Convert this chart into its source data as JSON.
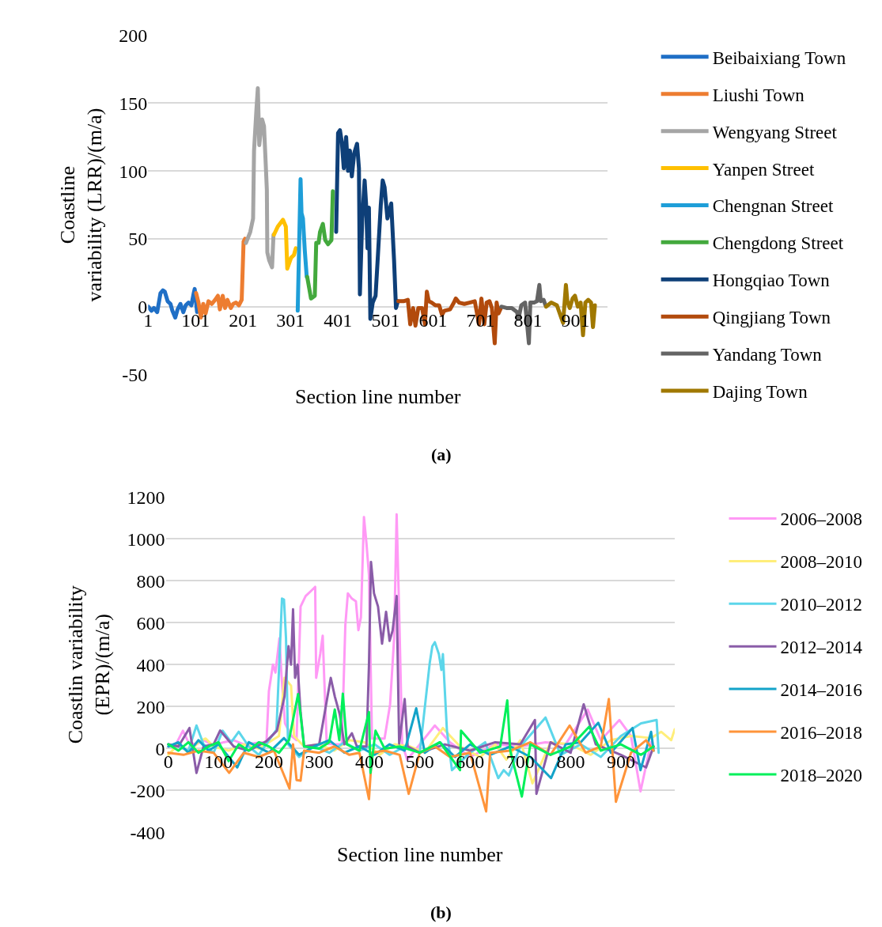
{
  "chart_data": [
    {
      "type": "line",
      "xlabel": "Section line number",
      "ylabel": "Coastline\nvariability (LRR)/(m/a)",
      "annotations": [
        "(a)"
      ],
      "xlim": [
        1,
        969
      ],
      "xticks": [
        1,
        101,
        201,
        301,
        401,
        501,
        601,
        701,
        801,
        901
      ],
      "ylim": [
        -50,
        200
      ],
      "yticks": [
        -50,
        0,
        50,
        100,
        150,
        200
      ],
      "grid": "y",
      "legend": "right",
      "series": [
        {
          "name": "Beibaixiang Town",
          "color": "#1f6fc6",
          "x": [
            1,
            8,
            13,
            20,
            27,
            32,
            36,
            42,
            48,
            52,
            58,
            63,
            69,
            75,
            80,
            86,
            92,
            97,
            99,
            104
          ],
          "values": [
            0,
            -3,
            -1,
            -4,
            10,
            12,
            11,
            4,
            2,
            -3,
            -8,
            -2,
            2,
            -4,
            1,
            3,
            1,
            10,
            13,
            -4
          ]
        },
        {
          "name": "Liushi Town",
          "color": "#ed7d31",
          "x": [
            102,
            107,
            112,
            117,
            122,
            128,
            135,
            142,
            148,
            152,
            158,
            163,
            168,
            175,
            180,
            186,
            192,
            198,
            202,
            205
          ],
          "values": [
            10,
            3,
            -8,
            2,
            -5,
            4,
            2,
            5,
            8,
            -2,
            8,
            -1,
            5,
            -1,
            2,
            3,
            1,
            5,
            48,
            50
          ]
        },
        {
          "name": "Wengyang Street",
          "color": "#a5a5a5",
          "x": [
            207,
            216,
            222,
            224,
            229,
            232,
            235,
            241,
            245,
            248,
            251,
            252,
            256,
            262,
            265
          ],
          "values": [
            47,
            55,
            65,
            115,
            145,
            161,
            119,
            138,
            133,
            110,
            86,
            40,
            34,
            29,
            53
          ]
        },
        {
          "name": "Yanpen Street",
          "color": "#ffc000",
          "x": [
            266,
            274,
            285,
            291,
            294,
            302,
            308,
            312
          ],
          "values": [
            53,
            59,
            64,
            59,
            28,
            36,
            38,
            43
          ]
        },
        {
          "name": "Chengnan Street",
          "color": "#1e9ed8",
          "x": [
            316,
            322,
            324,
            327,
            331,
            335
          ],
          "values": [
            -3,
            94,
            69,
            65,
            41,
            22
          ]
        },
        {
          "name": "Chengdong Street",
          "color": "#43a93d",
          "x": [
            336,
            340,
            344,
            352,
            355,
            360,
            363,
            369,
            374,
            380,
            387,
            390
          ],
          "values": [
            22,
            14,
            6,
            8,
            47,
            47,
            55,
            61,
            49,
            46,
            49,
            85
          ]
        },
        {
          "name": "Hongqiao Town",
          "color": "#0e3f78",
          "x": [
            397,
            401,
            405,
            409,
            413,
            418,
            422,
            426,
            430,
            435,
            441,
            445,
            447,
            452,
            457,
            460,
            463,
            466,
            469,
            474,
            480,
            485,
            491,
            495,
            499,
            505,
            513,
            519,
            523,
            527
          ],
          "values": [
            55,
            128,
            130,
            121,
            102,
            125,
            100,
            115,
            96,
            113,
            120,
            102,
            9,
            65,
            93,
            76,
            43,
            73,
            -9,
            3,
            8,
            38,
            75,
            93,
            88,
            65,
            76,
            34,
            -1,
            4
          ]
        },
        {
          "name": "Qingjiang Town",
          "color": "#b24a0c",
          "x": [
            528,
            539,
            548,
            553,
            559,
            564,
            570,
            578,
            584,
            588,
            592,
            598,
            606,
            614,
            620,
            625,
            637,
            645,
            649,
            656,
            667,
            678,
            689,
            698,
            703,
            709,
            714,
            720,
            725,
            731,
            735,
            739,
            744
          ],
          "values": [
            4,
            4,
            5,
            -13,
            -1,
            -14,
            -1,
            -1,
            -13,
            11,
            4,
            3,
            1,
            1,
            -6,
            -3,
            -2,
            3,
            6,
            3,
            2,
            3,
            4,
            -13,
            6,
            -13,
            3,
            4,
            -1,
            -27,
            3,
            -5,
            -1
          ]
        },
        {
          "name": "Yandang Town",
          "color": "#646464",
          "x": [
            745,
            756,
            767,
            778,
            781,
            787,
            795,
            803,
            806,
            814,
            820,
            825,
            828,
            834,
            838
          ],
          "values": [
            0,
            -1,
            -1,
            -4,
            -9,
            1,
            3,
            -27,
            3,
            3,
            4,
            16,
            4,
            5,
            1
          ]
        },
        {
          "name": "Dajing Town",
          "color": "#a07800",
          "x": [
            839,
            850,
            862,
            870,
            875,
            881,
            884,
            889,
            895,
            900,
            906,
            912,
            917,
            922,
            928,
            934,
            938,
            942
          ],
          "values": [
            0,
            3,
            1,
            -7,
            -12,
            16,
            4,
            -1,
            6,
            8,
            0,
            3,
            -21,
            3,
            5,
            3,
            -15,
            1
          ]
        }
      ]
    },
    {
      "type": "line",
      "xlabel": "Section line number",
      "ylabel": "Coastlin variability\n(EPR)/(m/a)",
      "annotations": [
        "(b)"
      ],
      "xlim": [
        -5,
        1007
      ],
      "xticks": [
        0,
        100,
        200,
        300,
        400,
        500,
        600,
        700,
        800,
        900
      ],
      "ylim": [
        -400,
        1200
      ],
      "yticks": [
        -400,
        -200,
        0,
        200,
        400,
        600,
        800,
        1000,
        1200
      ],
      "grid": "y",
      "legend": "right",
      "series": [
        {
          "name": "2006–2008",
          "color": "#ff99f5",
          "x": [
            0,
            15,
            29,
            40,
            55,
            70,
            90,
            110,
            130,
            150,
            170,
            185,
            195,
            200,
            208,
            213,
            221,
            225,
            232,
            245,
            255,
            263,
            273,
            284,
            292,
            294,
            302,
            307,
            310,
            315,
            330,
            345,
            352,
            357,
            365,
            373,
            378,
            383,
            389,
            394,
            399,
            405,
            430,
            441,
            449,
            454,
            459,
            465,
            475,
            500,
            530,
            560,
            600,
            650,
            700,
            750,
            790,
            834,
            860,
            897,
            920,
            939,
            960
          ],
          "values": [
            10,
            20,
            85,
            30,
            20,
            40,
            15,
            30,
            40,
            20,
            25,
            30,
            23,
            274,
            400,
            362,
            526,
            350,
            120,
            60,
            40,
            677,
            727,
            752,
            771,
            337,
            450,
            538,
            337,
            23,
            20,
            20,
            589,
            740,
            715,
            702,
            564,
            626,
            1104,
            979,
            828,
            48,
            48,
            211,
            526,
            1117,
            652,
            23,
            -53,
            20,
            110,
            30,
            -40,
            20,
            10,
            30,
            20,
            186,
            40,
            136,
            60,
            -204,
            30
          ]
        },
        {
          "name": "2008–2010",
          "color": "#ffee7a",
          "x": [
            0,
            20,
            40,
            60,
            74,
            90,
            120,
            150,
            180,
            200,
            220,
            231,
            244,
            250,
            270,
            300,
            330,
            360,
            390,
            420,
            450,
            480,
            510,
            546,
            580,
            620,
            650,
            672,
            700,
            724,
            760,
            800,
            840,
            880,
            920,
            960,
            980,
            1000,
            1007
          ],
          "values": [
            -30,
            20,
            -20,
            30,
            48,
            10,
            -10,
            20,
            0,
            30,
            60,
            337,
            300,
            60,
            10,
            20,
            -10,
            40,
            30,
            -30,
            20,
            10,
            -20,
            98,
            10,
            -40,
            20,
            -53,
            40,
            -166,
            30,
            20,
            -30,
            40,
            60,
            50,
            80,
            40,
            92
          ]
        },
        {
          "name": "2010–2012",
          "color": "#5cd6ea",
          "x": [
            0,
            20,
            40,
            56,
            70,
            90,
            108,
            125,
            140,
            160,
            180,
            200,
            215,
            226,
            230,
            234,
            238,
            260,
            290,
            320,
            350,
            380,
            410,
            440,
            470,
            500,
            520,
            525,
            530,
            538,
            543,
            546,
            554,
            564,
            600,
            630,
            656,
            667,
            677,
            700,
            750,
            780,
            820,
            860,
            900,
            940,
            971,
            975
          ],
          "values": [
            20,
            10,
            -10,
            110,
            20,
            -20,
            85,
            30,
            80,
            10,
            -30,
            40,
            90,
            715,
            710,
            526,
            20,
            -40,
            10,
            -20,
            30,
            -10,
            20,
            -30,
            10,
            -20,
            412,
            488,
            507,
            450,
            375,
            450,
            86,
            -103,
            -20,
            30,
            -141,
            -103,
            -128,
            10,
            148,
            -30,
            20,
            -40,
            60,
            120,
            136,
            -20
          ]
        },
        {
          "name": "2012–2014",
          "color": "#8a5ca8",
          "x": [
            0,
            20,
            42,
            56,
            70,
            90,
            103,
            130,
            160,
            195,
            216,
            231,
            239,
            244,
            248,
            252,
            257,
            263,
            270,
            300,
            323,
            331,
            341,
            350,
            365,
            375,
            394,
            399,
            403,
            409,
            417,
            425,
            433,
            440,
            446,
            454,
            459,
            470,
            476,
            500,
            550,
            600,
            650,
            700,
            729,
            732,
            760,
            800,
            826,
            850,
            900,
            950,
            965
          ],
          "values": [
            20,
            10,
            98,
            -116,
            10,
            20,
            86,
            10,
            -10,
            35,
            85,
            249,
            488,
            400,
            664,
            337,
            400,
            174,
            10,
            20,
            337,
            249,
            161,
            20,
            73,
            10,
            10,
            400,
            890,
            740,
            677,
            500,
            652,
            513,
            563,
            727,
            23,
            236,
            10,
            -20,
            20,
            -10,
            30,
            20,
            136,
            -216,
            30,
            -20,
            211,
            20,
            -30,
            -90,
            10
          ]
        },
        {
          "name": "2014–2016",
          "color": "#13a3c9",
          "x": [
            0,
            20,
            40,
            60,
            80,
            100,
            137,
            160,
            200,
            230,
            260,
            290,
            320,
            350,
            380,
            410,
            440,
            470,
            493,
            510,
            540,
            570,
            600,
            640,
            680,
            720,
            761,
            790,
            820,
            855,
            880,
            923,
            939,
            960,
            965
          ],
          "values": [
            10,
            30,
            -20,
            40,
            -10,
            20,
            -90,
            30,
            -20,
            50,
            -30,
            10,
            40,
            -20,
            10,
            -30,
            20,
            -10,
            192,
            -20,
            30,
            -40,
            20,
            -30,
            10,
            -40,
            -141,
            20,
            30,
            123,
            -20,
            98,
            -103,
            80,
            -10
          ]
        },
        {
          "name": "2016–2018",
          "color": "#ff943a",
          "x": [
            0,
            30,
            60,
            90,
            121,
            150,
            180,
            210,
            241,
            248,
            255,
            263,
            270,
            300,
            330,
            360,
            380,
            399,
            405,
            430,
            460,
            478,
            500,
            530,
            560,
            600,
            632,
            640,
            680,
            720,
            760,
            798,
            830,
            860,
            876,
            890,
            920,
            950,
            965
          ],
          "values": [
            -20,
            -30,
            -10,
            -20,
            -116,
            -20,
            -40,
            -10,
            -191,
            20,
            -150,
            -153,
            -10,
            -20,
            10,
            -30,
            -20,
            -241,
            -20,
            -10,
            -30,
            -216,
            -20,
            10,
            -40,
            -20,
            -300,
            -20,
            -10,
            30,
            -30,
            110,
            -20,
            10,
            236,
            -254,
            -20,
            40,
            -10
          ]
        },
        {
          "name": "2018–2020",
          "color": "#00f05a",
          "x": [
            0,
            20,
            40,
            60,
            80,
            100,
            120,
            140,
            160,
            180,
            200,
            220,
            240,
            252,
            258,
            263,
            270,
            300,
            320,
            331,
            340,
            347,
            355,
            380,
            399,
            402,
            412,
            430,
            460,
            500,
            540,
            580,
            582,
            620,
            660,
            674,
            680,
            703,
            720,
            760,
            800,
            837,
            860,
            900,
            940,
            965
          ],
          "values": [
            20,
            -10,
            30,
            -20,
            10,
            30,
            -60,
            20,
            -10,
            30,
            10,
            -20,
            40,
            186,
            260,
            161,
            10,
            0,
            30,
            186,
            40,
            262,
            20,
            -10,
            174,
            -116,
            85,
            0,
            10,
            -20,
            30,
            -103,
            85,
            -20,
            10,
            230,
            -10,
            -229,
            20,
            -30,
            10,
            104,
            -10,
            20,
            -30,
            10
          ]
        }
      ]
    }
  ]
}
